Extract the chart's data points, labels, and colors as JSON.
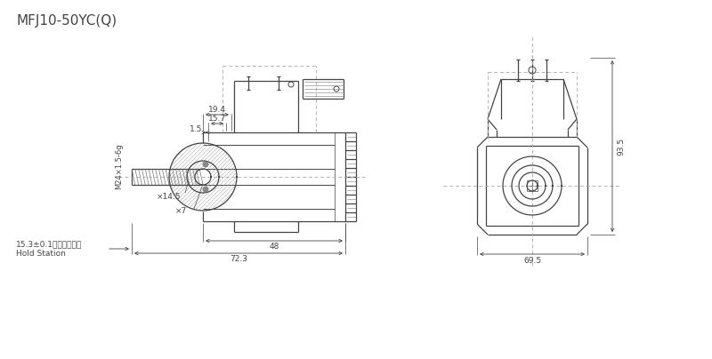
{
  "title": "MFJ10-50YC(Q)",
  "title_fontsize": 11,
  "lc": "#444444",
  "dc": "#aaaaaa",
  "hc": "#999999",
  "bg": "#ffffff",
  "dims": {
    "d1": "19.4",
    "d2": "15.7",
    "d3": "1.5",
    "d4": "M24×1.5-6g",
    "d5": "×14.5",
    "d6": "×7",
    "d7": "48",
    "d8": "72.3",
    "d9": "93.5",
    "d10": "69.5",
    "d11": "15.3±0.1（吸合位置）",
    "d12": "Hold Station"
  }
}
